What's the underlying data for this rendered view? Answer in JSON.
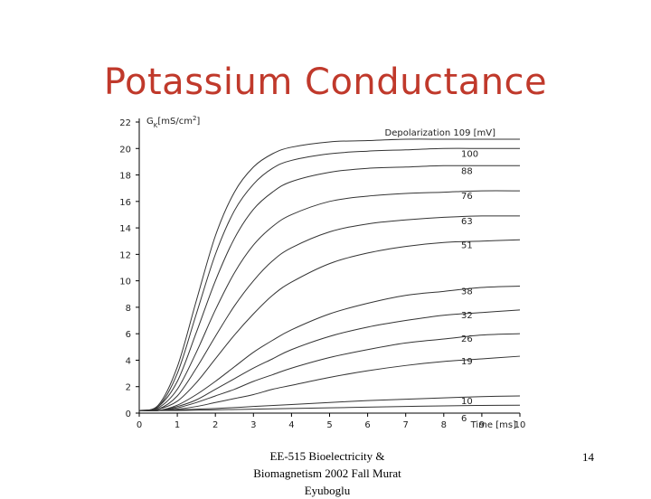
{
  "slide": {
    "title": "Potassium Conductance",
    "footer": "EE-515 Bioelectricity & Biomagnetism 2002 Fall Murat Eyuboglu",
    "page_number": "14"
  },
  "chart_data": {
    "type": "line",
    "title": "",
    "ylabel": "G_K [mS/cm²]",
    "ylabel_main": "G",
    "ylabel_sub": "K",
    "ylabel_unit_pre": "[mS/cm",
    "ylabel_unit_sup": "2",
    "ylabel_unit_post": "]",
    "xlabel": "Time [ms]",
    "xlim": [
      0,
      10
    ],
    "ylim": [
      0,
      22
    ],
    "xticks": [
      "0",
      "1",
      "2",
      "3",
      "4",
      "5",
      "6",
      "7",
      "8",
      "9",
      "10"
    ],
    "yticks": [
      "0",
      "2",
      "4",
      "6",
      "8",
      "10",
      "12",
      "14",
      "16",
      "18",
      "20",
      "22"
    ],
    "legend_header": "Depolarization  109 [mV]",
    "grid": false,
    "series": [
      {
        "name": "109",
        "values": [
          {
            "x": 0,
            "y": 0.2
          },
          {
            "x": 0.5,
            "y": 0.6
          },
          {
            "x": 1,
            "y": 3.5
          },
          {
            "x": 1.5,
            "y": 8.5
          },
          {
            "x": 2,
            "y": 13.4
          },
          {
            "x": 2.5,
            "y": 16.7
          },
          {
            "x": 3,
            "y": 18.6
          },
          {
            "x": 3.5,
            "y": 19.6
          },
          {
            "x": 4,
            "y": 20.1
          },
          {
            "x": 5,
            "y": 20.5
          },
          {
            "x": 6,
            "y": 20.6
          },
          {
            "x": 7,
            "y": 20.7
          },
          {
            "x": 8,
            "y": 20.7
          },
          {
            "x": 9,
            "y": 20.7
          },
          {
            "x": 10,
            "y": 20.7
          }
        ]
      },
      {
        "name": "100",
        "values": [
          {
            "x": 0,
            "y": 0.2
          },
          {
            "x": 0.5,
            "y": 0.5
          },
          {
            "x": 1,
            "y": 3.0
          },
          {
            "x": 1.5,
            "y": 7.5
          },
          {
            "x": 2,
            "y": 12.0
          },
          {
            "x": 2.5,
            "y": 15.3
          },
          {
            "x": 3,
            "y": 17.3
          },
          {
            "x": 3.5,
            "y": 18.5
          },
          {
            "x": 4,
            "y": 19.1
          },
          {
            "x": 5,
            "y": 19.6
          },
          {
            "x": 6,
            "y": 19.8
          },
          {
            "x": 7,
            "y": 19.9
          },
          {
            "x": 8,
            "y": 20.0
          },
          {
            "x": 9,
            "y": 20.0
          },
          {
            "x": 10,
            "y": 20.0
          }
        ]
      },
      {
        "name": "88",
        "values": [
          {
            "x": 0,
            "y": 0.2
          },
          {
            "x": 0.5,
            "y": 0.5
          },
          {
            "x": 1,
            "y": 2.4
          },
          {
            "x": 1.5,
            "y": 6.1
          },
          {
            "x": 2,
            "y": 10.0
          },
          {
            "x": 2.5,
            "y": 13.2
          },
          {
            "x": 3,
            "y": 15.4
          },
          {
            "x": 3.5,
            "y": 16.7
          },
          {
            "x": 4,
            "y": 17.5
          },
          {
            "x": 5,
            "y": 18.2
          },
          {
            "x": 6,
            "y": 18.5
          },
          {
            "x": 7,
            "y": 18.6
          },
          {
            "x": 8,
            "y": 18.7
          },
          {
            "x": 9,
            "y": 18.7
          },
          {
            "x": 10,
            "y": 18.7
          }
        ]
      },
      {
        "name": "76",
        "values": [
          {
            "x": 0,
            "y": 0.2
          },
          {
            "x": 0.5,
            "y": 0.4
          },
          {
            "x": 1,
            "y": 1.8
          },
          {
            "x": 1.5,
            "y": 4.6
          },
          {
            "x": 2,
            "y": 7.8
          },
          {
            "x": 2.5,
            "y": 10.6
          },
          {
            "x": 3,
            "y": 12.7
          },
          {
            "x": 3.5,
            "y": 14.1
          },
          {
            "x": 4,
            "y": 15.0
          },
          {
            "x": 5,
            "y": 16.0
          },
          {
            "x": 6,
            "y": 16.4
          },
          {
            "x": 7,
            "y": 16.6
          },
          {
            "x": 8,
            "y": 16.7
          },
          {
            "x": 9,
            "y": 16.8
          },
          {
            "x": 10,
            "y": 16.8
          }
        ]
      },
      {
        "name": "63",
        "values": [
          {
            "x": 0,
            "y": 0.2
          },
          {
            "x": 0.5,
            "y": 0.3
          },
          {
            "x": 1,
            "y": 1.3
          },
          {
            "x": 1.5,
            "y": 3.4
          },
          {
            "x": 2,
            "y": 5.8
          },
          {
            "x": 2.5,
            "y": 8.1
          },
          {
            "x": 3,
            "y": 10.0
          },
          {
            "x": 3.5,
            "y": 11.5
          },
          {
            "x": 4,
            "y": 12.5
          },
          {
            "x": 5,
            "y": 13.7
          },
          {
            "x": 6,
            "y": 14.3
          },
          {
            "x": 7,
            "y": 14.6
          },
          {
            "x": 8,
            "y": 14.8
          },
          {
            "x": 9,
            "y": 14.9
          },
          {
            "x": 10,
            "y": 14.9
          }
        ]
      },
      {
        "name": "51",
        "values": [
          {
            "x": 0,
            "y": 0.2
          },
          {
            "x": 0.5,
            "y": 0.3
          },
          {
            "x": 1,
            "y": 0.9
          },
          {
            "x": 1.5,
            "y": 2.3
          },
          {
            "x": 2,
            "y": 4.1
          },
          {
            "x": 2.5,
            "y": 5.9
          },
          {
            "x": 3,
            "y": 7.5
          },
          {
            "x": 3.5,
            "y": 8.9
          },
          {
            "x": 4,
            "y": 9.9
          },
          {
            "x": 5,
            "y": 11.3
          },
          {
            "x": 6,
            "y": 12.1
          },
          {
            "x": 7,
            "y": 12.6
          },
          {
            "x": 8,
            "y": 12.9
          },
          {
            "x": 9,
            "y": 13.0
          },
          {
            "x": 10,
            "y": 13.1
          }
        ]
      },
      {
        "name": "38",
        "values": [
          {
            "x": 0,
            "y": 0.2
          },
          {
            "x": 0.5,
            "y": 0.2
          },
          {
            "x": 1,
            "y": 0.6
          },
          {
            "x": 1.5,
            "y": 1.4
          },
          {
            "x": 2,
            "y": 2.4
          },
          {
            "x": 2.5,
            "y": 3.5
          },
          {
            "x": 3,
            "y": 4.6
          },
          {
            "x": 3.5,
            "y": 5.5
          },
          {
            "x": 4,
            "y": 6.3
          },
          {
            "x": 5,
            "y": 7.5
          },
          {
            "x": 6,
            "y": 8.3
          },
          {
            "x": 7,
            "y": 8.9
          },
          {
            "x": 8,
            "y": 9.2
          },
          {
            "x": 9,
            "y": 9.5
          },
          {
            "x": 10,
            "y": 9.6
          }
        ]
      },
      {
        "name": "32",
        "values": [
          {
            "x": 0,
            "y": 0.2
          },
          {
            "x": 0.5,
            "y": 0.2
          },
          {
            "x": 1,
            "y": 0.5
          },
          {
            "x": 1.5,
            "y": 1.0
          },
          {
            "x": 2,
            "y": 1.8
          },
          {
            "x": 2.5,
            "y": 2.6
          },
          {
            "x": 3,
            "y": 3.4
          },
          {
            "x": 3.5,
            "y": 4.1
          },
          {
            "x": 4,
            "y": 4.8
          },
          {
            "x": 5,
            "y": 5.8
          },
          {
            "x": 6,
            "y": 6.5
          },
          {
            "x": 7,
            "y": 7.0
          },
          {
            "x": 8,
            "y": 7.4
          },
          {
            "x": 9,
            "y": 7.6
          },
          {
            "x": 10,
            "y": 7.8
          }
        ]
      },
      {
        "name": "26",
        "values": [
          {
            "x": 0,
            "y": 0.2
          },
          {
            "x": 0.5,
            "y": 0.2
          },
          {
            "x": 1,
            "y": 0.4
          },
          {
            "x": 1.5,
            "y": 0.8
          },
          {
            "x": 2,
            "y": 1.3
          },
          {
            "x": 2.5,
            "y": 1.8
          },
          {
            "x": 3,
            "y": 2.4
          },
          {
            "x": 3.5,
            "y": 2.9
          },
          {
            "x": 4,
            "y": 3.4
          },
          {
            "x": 5,
            "y": 4.2
          },
          {
            "x": 6,
            "y": 4.8
          },
          {
            "x": 7,
            "y": 5.3
          },
          {
            "x": 8,
            "y": 5.6
          },
          {
            "x": 9,
            "y": 5.9
          },
          {
            "x": 10,
            "y": 6.0
          }
        ]
      },
      {
        "name": "19",
        "values": [
          {
            "x": 0,
            "y": 0.2
          },
          {
            "x": 0.5,
            "y": 0.2
          },
          {
            "x": 1,
            "y": 0.3
          },
          {
            "x": 1.5,
            "y": 0.5
          },
          {
            "x": 2,
            "y": 0.8
          },
          {
            "x": 2.5,
            "y": 1.1
          },
          {
            "x": 3,
            "y": 1.4
          },
          {
            "x": 3.5,
            "y": 1.8
          },
          {
            "x": 4,
            "y": 2.1
          },
          {
            "x": 5,
            "y": 2.7
          },
          {
            "x": 6,
            "y": 3.2
          },
          {
            "x": 7,
            "y": 3.6
          },
          {
            "x": 8,
            "y": 3.9
          },
          {
            "x": 9,
            "y": 4.1
          },
          {
            "x": 10,
            "y": 4.3
          }
        ]
      },
      {
        "name": "10",
        "values": [
          {
            "x": 0,
            "y": 0.2
          },
          {
            "x": 1,
            "y": 0.25
          },
          {
            "x": 2,
            "y": 0.35
          },
          {
            "x": 3,
            "y": 0.5
          },
          {
            "x": 4,
            "y": 0.65
          },
          {
            "x": 5,
            "y": 0.8
          },
          {
            "x": 6,
            "y": 0.95
          },
          {
            "x": 7,
            "y": 1.05
          },
          {
            "x": 8,
            "y": 1.15
          },
          {
            "x": 9,
            "y": 1.25
          },
          {
            "x": 10,
            "y": 1.3
          }
        ]
      },
      {
        "name": "6",
        "values": [
          {
            "x": 0,
            "y": 0.2
          },
          {
            "x": 1,
            "y": 0.2
          },
          {
            "x": 2,
            "y": 0.25
          },
          {
            "x": 3,
            "y": 0.3
          },
          {
            "x": 4,
            "y": 0.35
          },
          {
            "x": 5,
            "y": 0.4
          },
          {
            "x": 6,
            "y": 0.45
          },
          {
            "x": 7,
            "y": 0.5
          },
          {
            "x": 8,
            "y": 0.55
          },
          {
            "x": 9,
            "y": 0.58
          },
          {
            "x": 10,
            "y": 0.6
          }
        ]
      }
    ]
  }
}
